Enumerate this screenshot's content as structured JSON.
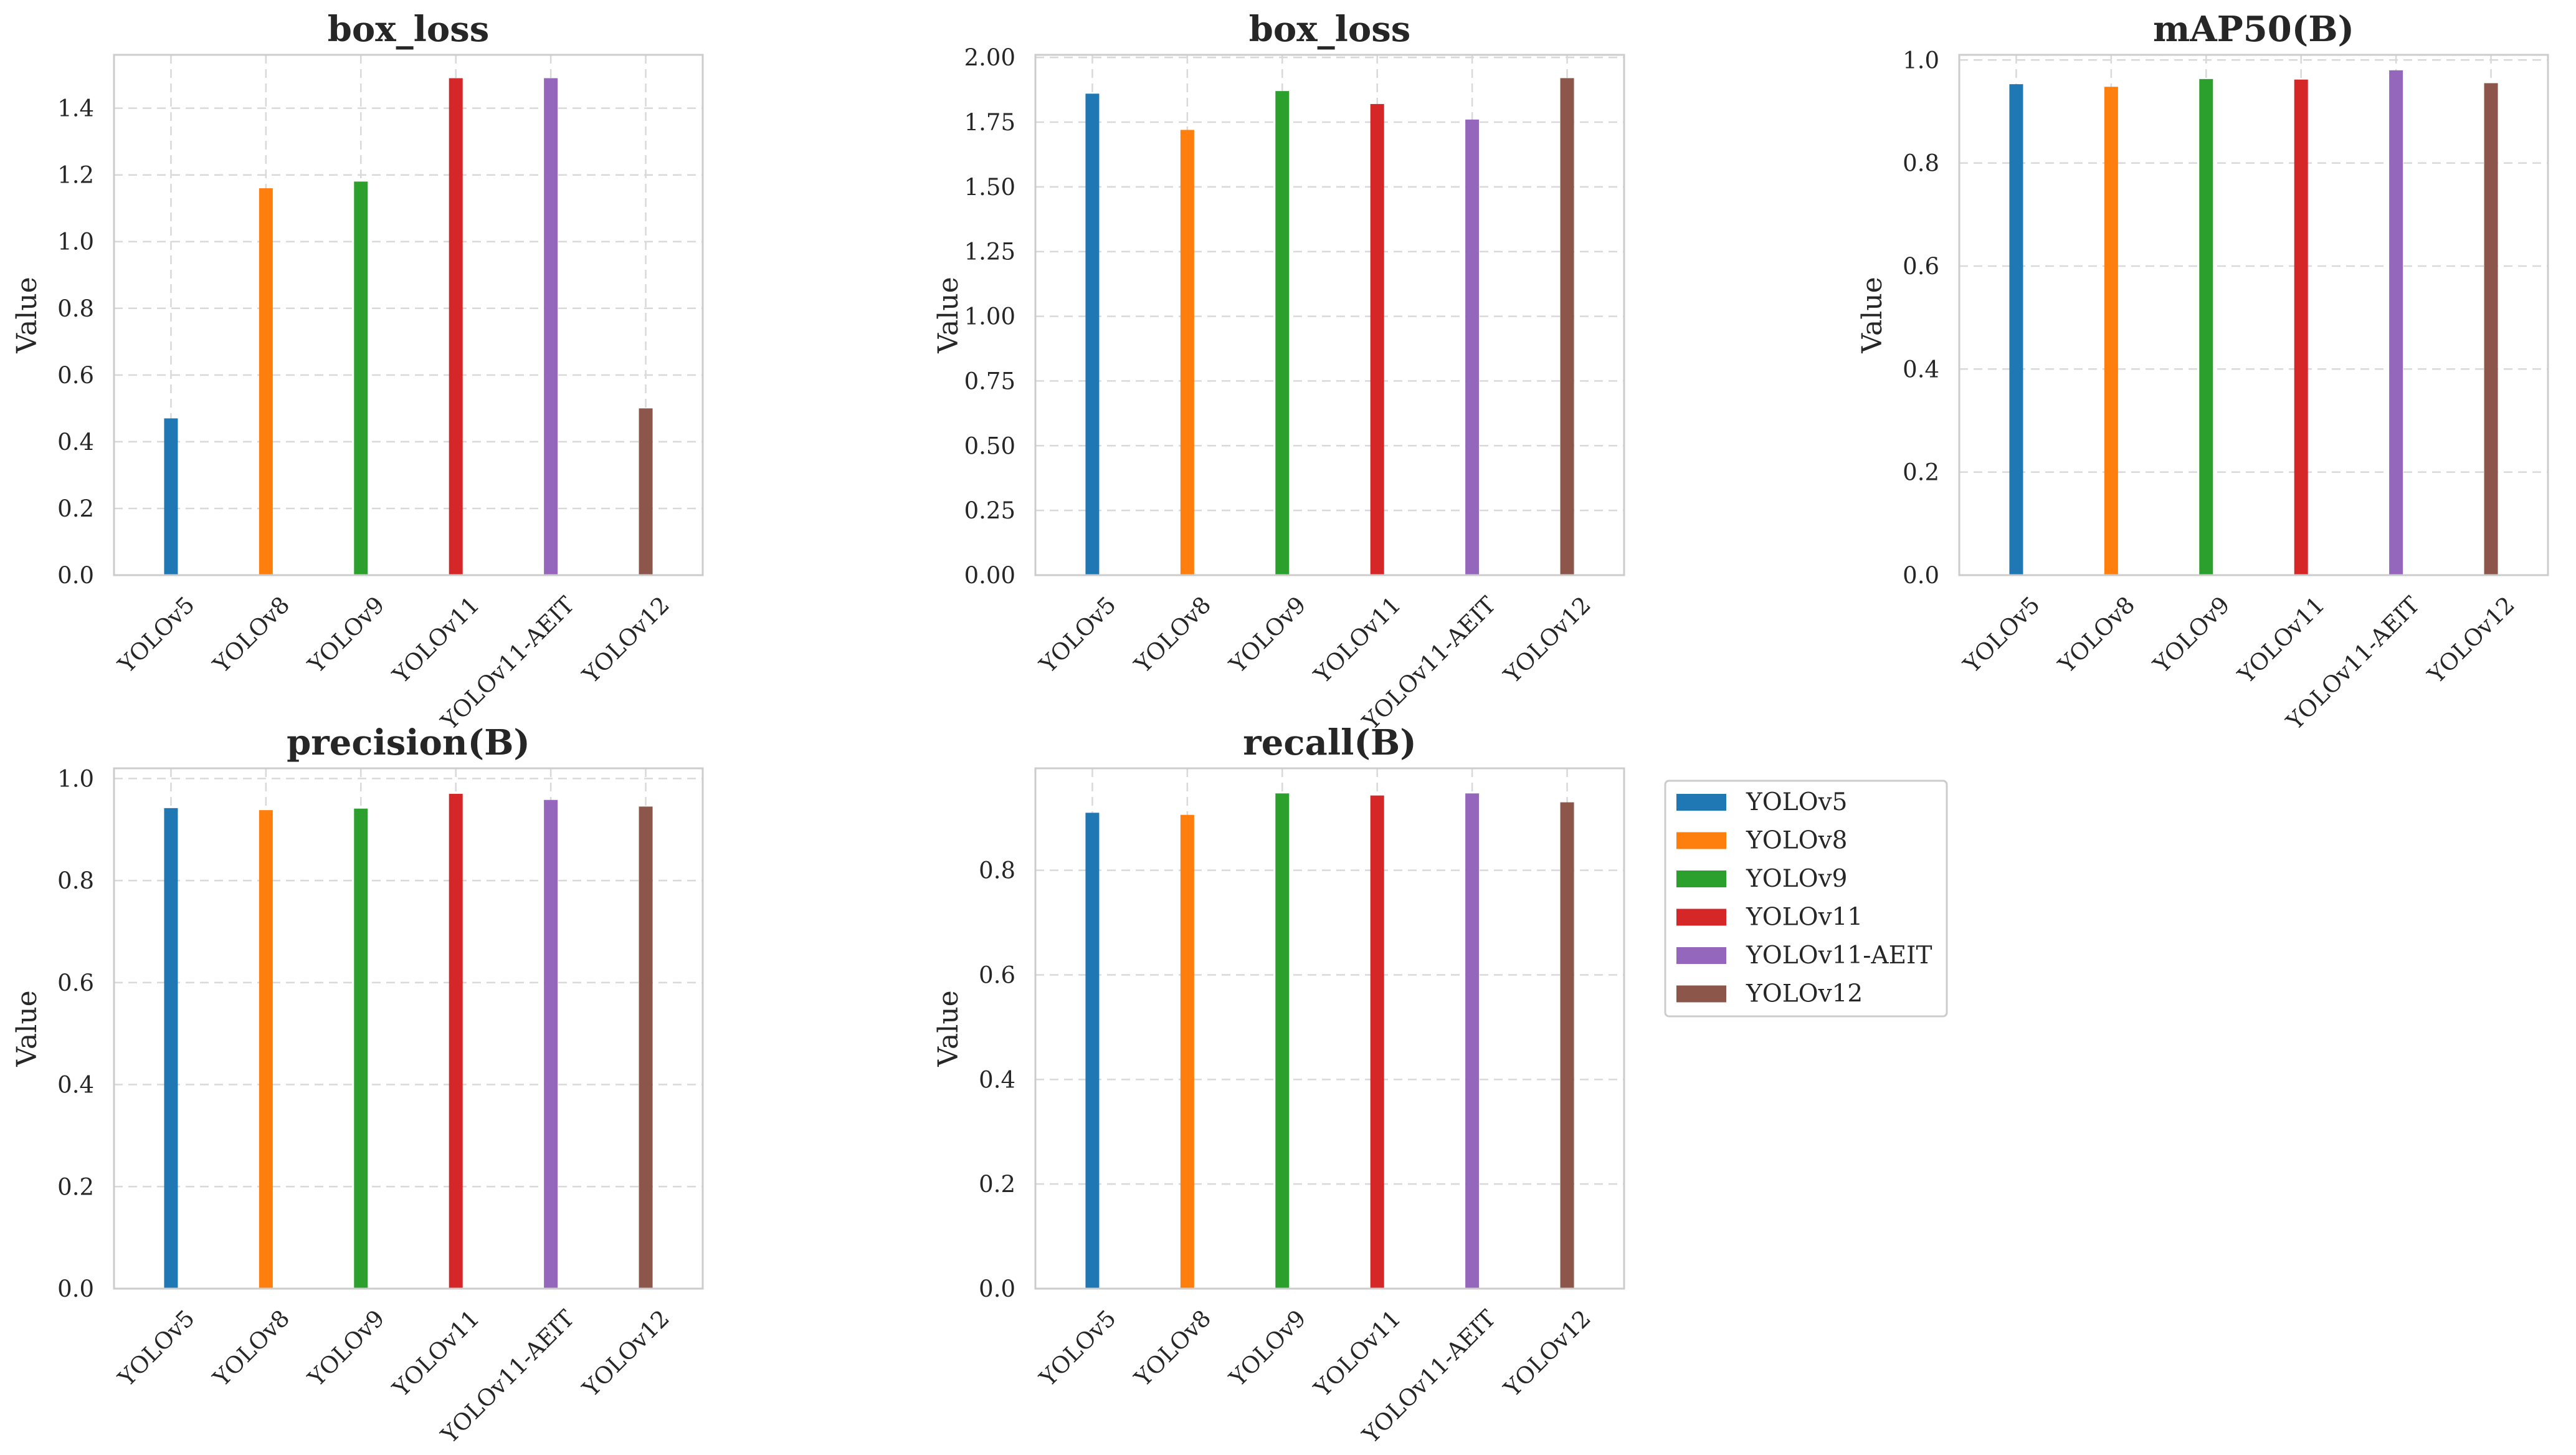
{
  "chart_data": [
    {
      "type": "bar",
      "title": "box_loss",
      "xlabel": "",
      "ylabel": "Value",
      "categories": [
        "YOLOv5",
        "YOLOv8",
        "YOLOv9",
        "YOLOv11",
        "YOLOv11-AEIT",
        "YOLOv12"
      ],
      "values": [
        0.47,
        1.16,
        1.18,
        1.49,
        1.49,
        0.5
      ],
      "ylim": [
        0,
        1.56
      ],
      "yticks": [
        0.0,
        0.2,
        0.4,
        0.6,
        0.8,
        1.0,
        1.2,
        1.4
      ],
      "ytick_labels": [
        "0.0",
        "0.2",
        "0.4",
        "0.6",
        "0.8",
        "1.0",
        "1.2",
        "1.4"
      ],
      "grid": true
    },
    {
      "type": "bar",
      "title": "box_loss",
      "xlabel": "",
      "ylabel": "Value",
      "categories": [
        "YOLOv5",
        "YOLOv8",
        "YOLOv9",
        "YOLOv11",
        "YOLOv11-AEIT",
        "YOLOv12"
      ],
      "values": [
        1.86,
        1.72,
        1.87,
        1.82,
        1.76,
        1.92
      ],
      "ylim": [
        0,
        2.01
      ],
      "yticks": [
        0.0,
        0.25,
        0.5,
        0.75,
        1.0,
        1.25,
        1.5,
        1.75,
        2.0
      ],
      "ytick_labels": [
        "0.00",
        "0.25",
        "0.50",
        "0.75",
        "1.00",
        "1.25",
        "1.50",
        "1.75",
        "2.00"
      ],
      "grid": true
    },
    {
      "type": "bar",
      "title": "mAP50(B)",
      "xlabel": "",
      "ylabel": "Value",
      "categories": [
        "YOLOv5",
        "YOLOv8",
        "YOLOv9",
        "YOLOv11",
        "YOLOv11-AEIT",
        "YOLOv12"
      ],
      "values": [
        0.953,
        0.948,
        0.963,
        0.962,
        0.98,
        0.955
      ],
      "ylim": [
        0,
        1.01
      ],
      "yticks": [
        0.0,
        0.2,
        0.4,
        0.6,
        0.8,
        1.0
      ],
      "ytick_labels": [
        "0.0",
        "0.2",
        "0.4",
        "0.6",
        "0.8",
        "1.0"
      ],
      "grid": true
    },
    {
      "type": "bar",
      "title": "precision(B)",
      "xlabel": "",
      "ylabel": "Value",
      "categories": [
        "YOLOv5",
        "YOLOv8",
        "YOLOv9",
        "YOLOv11",
        "YOLOv11-AEIT",
        "YOLOv12"
      ],
      "values": [
        0.942,
        0.938,
        0.941,
        0.97,
        0.958,
        0.945
      ],
      "ylim": [
        0,
        1.02
      ],
      "yticks": [
        0.0,
        0.2,
        0.4,
        0.6,
        0.8,
        1.0
      ],
      "ytick_labels": [
        "0.0",
        "0.2",
        "0.4",
        "0.6",
        "0.8",
        "1.0"
      ],
      "grid": true
    },
    {
      "type": "bar",
      "title": "recall(B)",
      "xlabel": "",
      "ylabel": "Value",
      "categories": [
        "YOLOv5",
        "YOLOv8",
        "YOLOv9",
        "YOLOv11",
        "YOLOv11-AEIT",
        "YOLOv12"
      ],
      "values": [
        0.91,
        0.906,
        0.947,
        0.943,
        0.947,
        0.93
      ],
      "ylim": [
        0,
        0.995
      ],
      "yticks": [
        0.0,
        0.2,
        0.4,
        0.6,
        0.8
      ],
      "ytick_labels": [
        "0.0",
        "0.2",
        "0.4",
        "0.6",
        "0.8"
      ],
      "grid": true
    }
  ],
  "series_colors": [
    "#1f77b4",
    "#ff7f0e",
    "#2ca02c",
    "#d62728",
    "#9467bd",
    "#8c564b"
  ],
  "legend": {
    "placement": "right of bottom-middle chart",
    "items": [
      "YOLOv5",
      "YOLOv8",
      "YOLOv9",
      "YOLOv11",
      "YOLOv11-AEIT",
      "YOLOv12"
    ]
  }
}
